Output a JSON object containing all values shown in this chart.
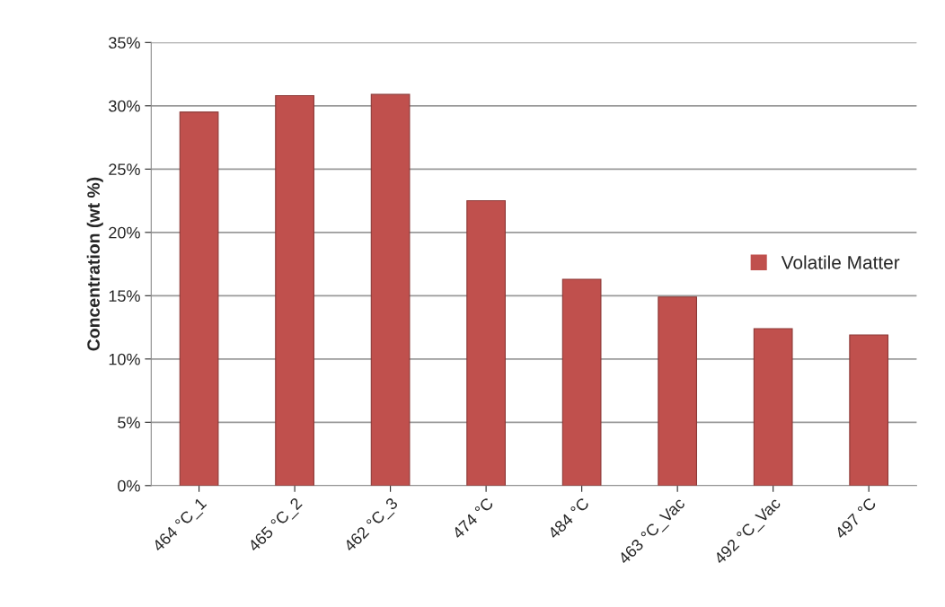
{
  "chart_data": {
    "type": "bar",
    "ylabel": "Concentration (wt %)",
    "categories": [
      "464 °C_1",
      "465 °C_2",
      "462 °C_3",
      "474 °C",
      "484 °C",
      "463 °C_Vac",
      "492 °C_Vac",
      "497 °C"
    ],
    "series": [
      {
        "name": "Volatile Matter",
        "color": "#c0504d",
        "values": [
          29.5,
          30.8,
          30.9,
          22.5,
          16.3,
          14.9,
          12.4,
          11.9
        ]
      }
    ],
    "ylim": [
      0,
      35
    ],
    "yticks": [
      {
        "value": 0,
        "label": "0%"
      },
      {
        "value": 5,
        "label": "5%"
      },
      {
        "value": 10,
        "label": "10%"
      },
      {
        "value": 15,
        "label": "15%"
      },
      {
        "value": 20,
        "label": "20%"
      },
      {
        "value": 25,
        "label": "25%"
      },
      {
        "value": 30,
        "label": "30%"
      },
      {
        "value": 35,
        "label": "35%"
      }
    ],
    "grid": "y",
    "legend": "right"
  }
}
